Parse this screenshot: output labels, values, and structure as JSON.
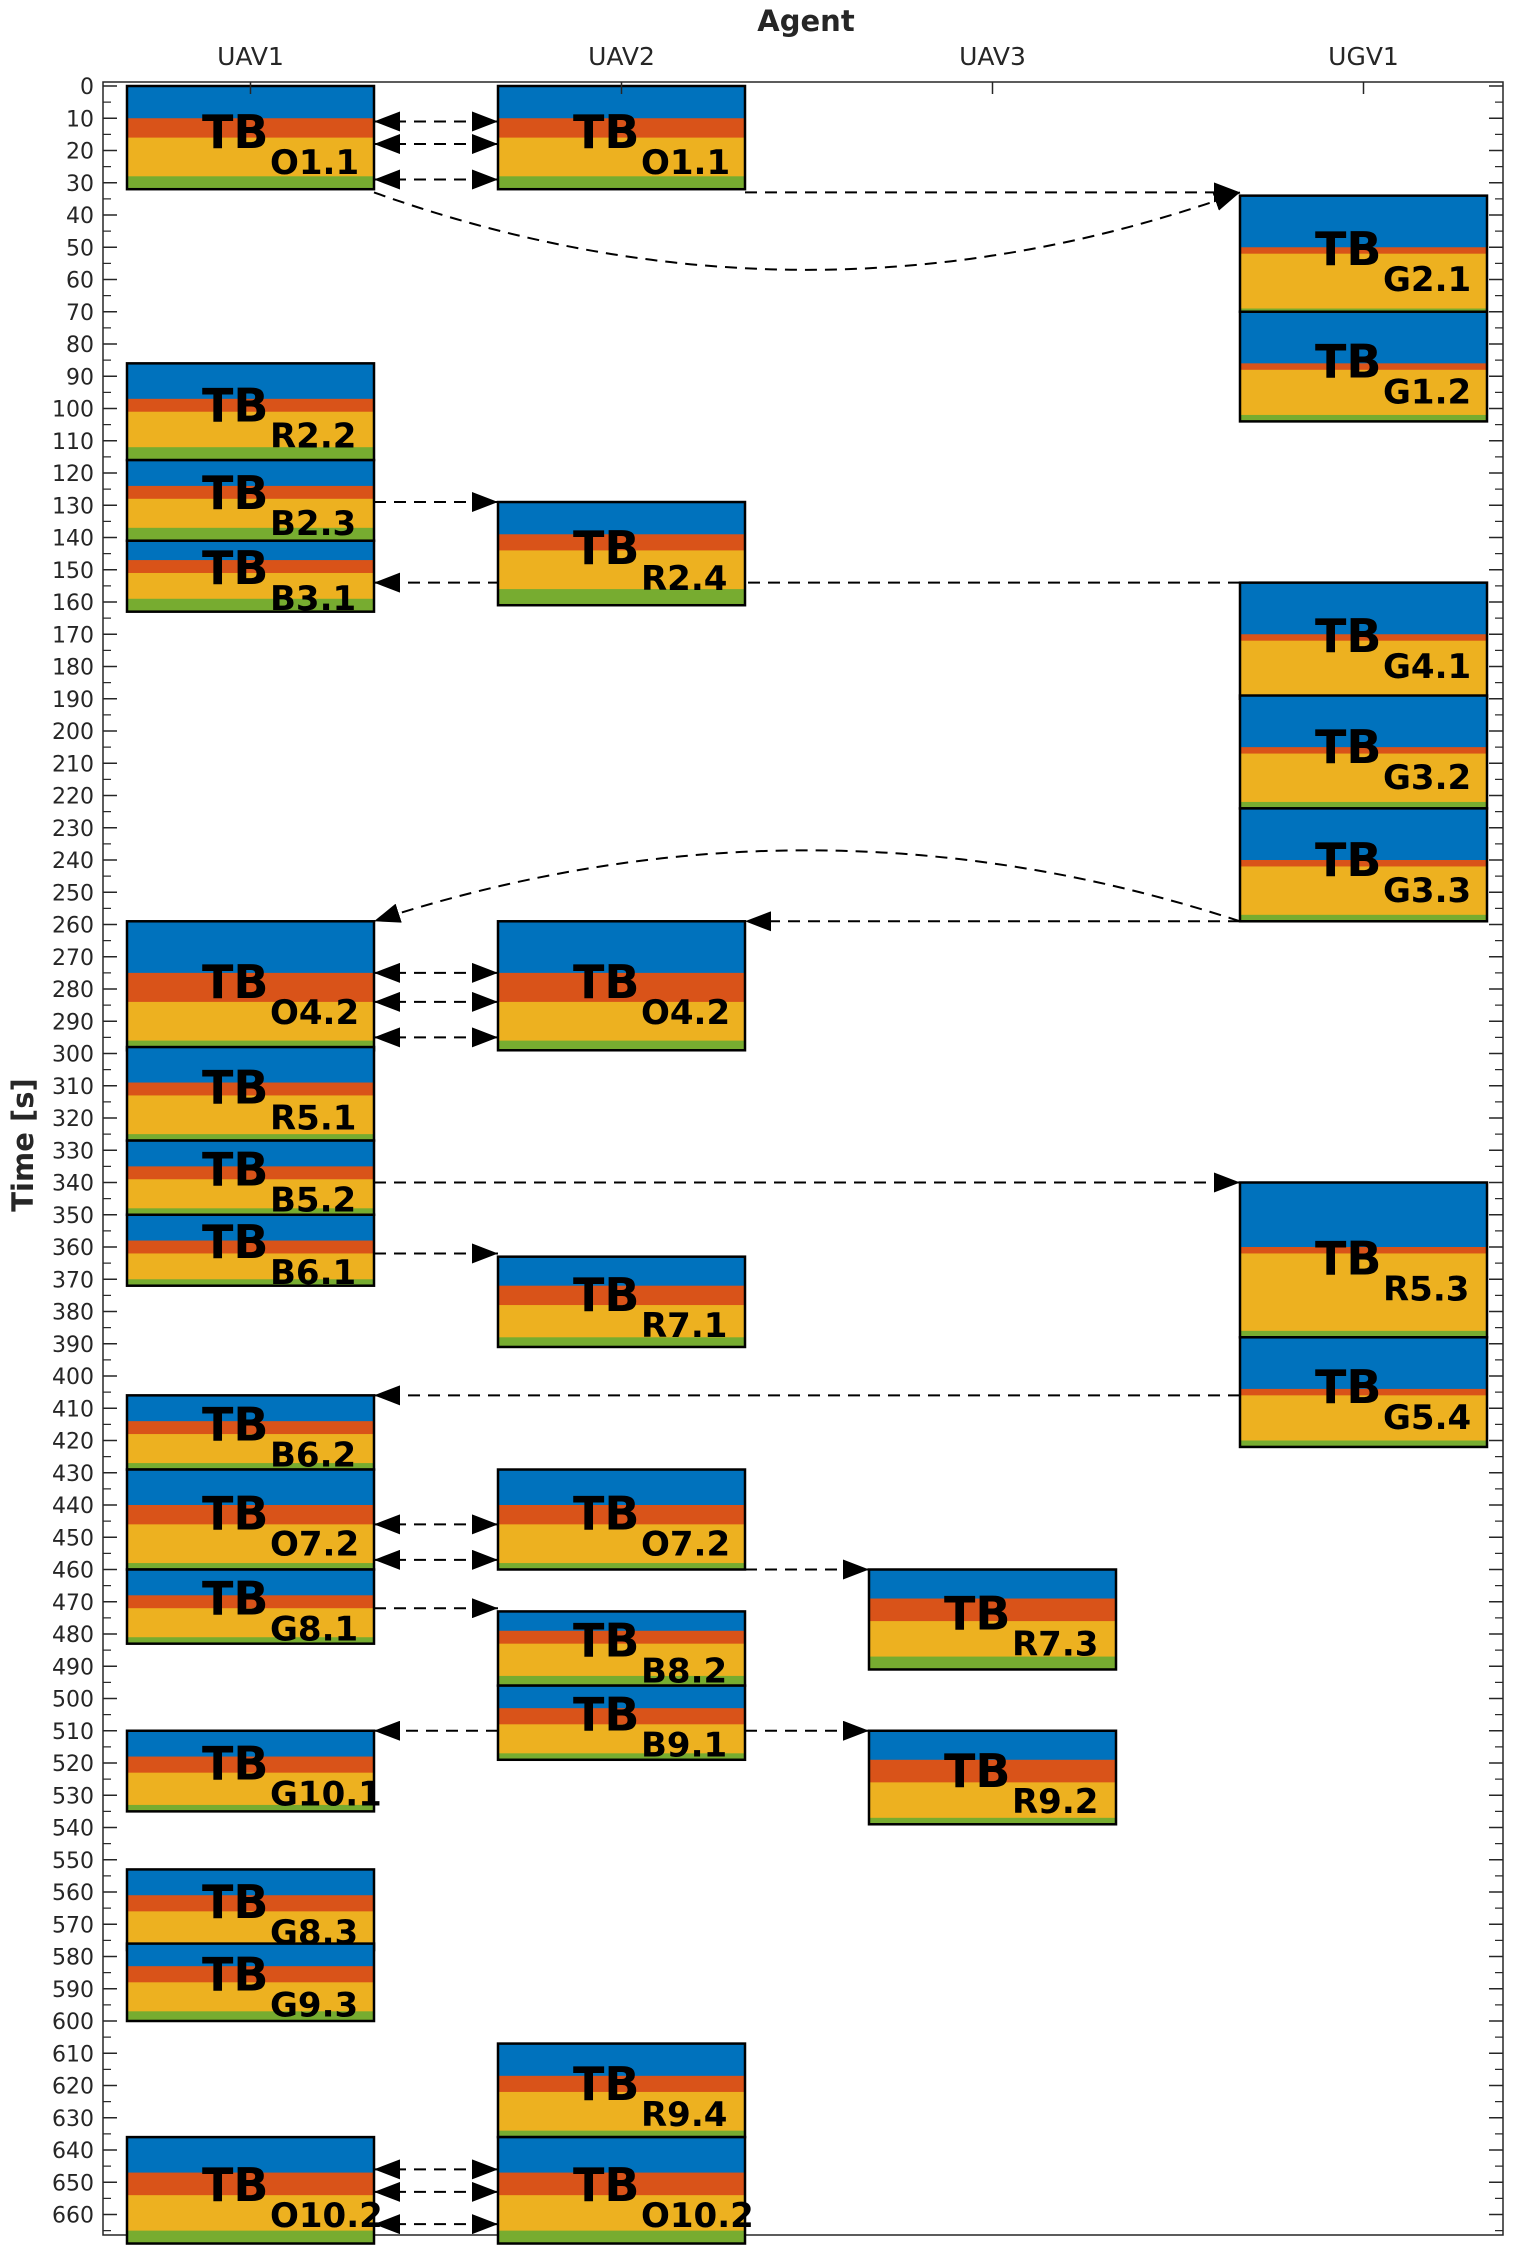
{
  "chart_data": {
    "type": "gantt",
    "title": "Agent",
    "ylabel": "Time [s]",
    "ylim": [
      0,
      670
    ],
    "yticks": [
      0,
      10,
      20,
      30,
      40,
      50,
      60,
      70,
      80,
      90,
      100,
      110,
      120,
      130,
      140,
      150,
      160,
      170,
      180,
      190,
      200,
      210,
      220,
      230,
      240,
      250,
      260,
      270,
      280,
      290,
      300,
      310,
      320,
      330,
      340,
      350,
      360,
      370,
      380,
      390,
      400,
      410,
      420,
      430,
      440,
      450,
      460,
      470,
      480,
      490,
      500,
      510,
      520,
      530,
      540,
      550,
      560,
      570,
      580,
      590,
      600,
      610,
      620,
      630,
      640,
      650,
      660
    ],
    "agents": [
      "UAV1",
      "UAV2",
      "UAV3",
      "UGV1"
    ],
    "segment_colors": {
      "blue": "#0072BD",
      "orange": "#D95319",
      "yellow": "#EDB120",
      "green": "#77AC30"
    },
    "tasks": [
      {
        "agent": 0,
        "label": "TB",
        "sub": "O1.1",
        "start": 0,
        "segments": [
          10,
          6,
          12,
          4
        ]
      },
      {
        "agent": 1,
        "label": "TB",
        "sub": "O1.1",
        "start": 0,
        "segments": [
          10,
          6,
          12,
          4
        ]
      },
      {
        "agent": 3,
        "label": "TB",
        "sub": "G2.1",
        "start": 34,
        "segments": [
          16,
          2,
          17,
          1
        ]
      },
      {
        "agent": 3,
        "label": "TB",
        "sub": "G1.2",
        "start": 70,
        "segments": [
          16,
          2,
          14,
          2
        ]
      },
      {
        "agent": 0,
        "label": "TB",
        "sub": "R2.2",
        "start": 86,
        "segments": [
          11,
          4,
          11,
          4
        ]
      },
      {
        "agent": 0,
        "label": "TB",
        "sub": "B2.3",
        "start": 116,
        "segments": [
          8,
          4,
          9,
          4
        ]
      },
      {
        "agent": 1,
        "label": "TB",
        "sub": "R2.4",
        "start": 129,
        "segments": [
          10,
          5,
          12,
          5
        ]
      },
      {
        "agent": 0,
        "label": "TB",
        "sub": "B3.1",
        "start": 141,
        "segments": [
          6,
          4,
          8,
          4
        ]
      },
      {
        "agent": 3,
        "label": "TB",
        "sub": "G4.1",
        "start": 154,
        "segments": [
          16,
          2,
          17,
          1
        ]
      },
      {
        "agent": 3,
        "label": "TB",
        "sub": "G3.2",
        "start": 189,
        "segments": [
          16,
          2,
          15,
          2
        ]
      },
      {
        "agent": 3,
        "label": "TB",
        "sub": "G3.3",
        "start": 224,
        "segments": [
          16,
          2,
          15,
          2
        ]
      },
      {
        "agent": 0,
        "label": "TB",
        "sub": "O4.2",
        "start": 259,
        "segments": [
          16,
          9,
          12,
          3
        ]
      },
      {
        "agent": 1,
        "label": "TB",
        "sub": "O4.2",
        "start": 259,
        "segments": [
          16,
          9,
          12,
          3
        ]
      },
      {
        "agent": 0,
        "label": "TB",
        "sub": "R5.1",
        "start": 298,
        "segments": [
          11,
          4,
          12,
          2
        ]
      },
      {
        "agent": 0,
        "label": "TB",
        "sub": "B5.2",
        "start": 327,
        "segments": [
          8,
          4,
          9,
          2
        ]
      },
      {
        "agent": 3,
        "label": "TB",
        "sub": "R5.3",
        "start": 340,
        "segments": [
          20,
          2,
          24,
          2
        ]
      },
      {
        "agent": 0,
        "label": "TB",
        "sub": "B6.1",
        "start": 350,
        "segments": [
          8,
          4,
          8,
          2
        ]
      },
      {
        "agent": 1,
        "label": "TB",
        "sub": "R7.1",
        "start": 363,
        "segments": [
          9,
          6,
          10,
          3
        ]
      },
      {
        "agent": 3,
        "label": "TB",
        "sub": "G5.4",
        "start": 388,
        "segments": [
          16,
          2,
          14,
          2
        ]
      },
      {
        "agent": 0,
        "label": "TB",
        "sub": "B6.2",
        "start": 406,
        "segments": [
          8,
          4,
          9,
          2
        ]
      },
      {
        "agent": 0,
        "label": "TB",
        "sub": "O7.2",
        "start": 429,
        "segments": [
          11,
          6,
          12,
          2
        ]
      },
      {
        "agent": 1,
        "label": "TB",
        "sub": "O7.2",
        "start": 429,
        "segments": [
          11,
          6,
          12,
          2
        ]
      },
      {
        "agent": 0,
        "label": "TB",
        "sub": "G8.1",
        "start": 460,
        "segments": [
          8,
          4,
          9,
          2
        ]
      },
      {
        "agent": 2,
        "label": "TB",
        "sub": "R7.3",
        "start": 460,
        "segments": [
          9,
          7,
          11,
          4
        ]
      },
      {
        "agent": 1,
        "label": "TB",
        "sub": "B8.2",
        "start": 473,
        "segments": [
          6,
          4,
          10,
          3
        ]
      },
      {
        "agent": 1,
        "label": "TB",
        "sub": "B9.1",
        "start": 496,
        "segments": [
          7,
          5,
          9,
          2
        ]
      },
      {
        "agent": 0,
        "label": "TB",
        "sub": "G10.1",
        "start": 510,
        "segments": [
          8,
          5,
          10,
          2
        ]
      },
      {
        "agent": 2,
        "label": "TB",
        "sub": "R9.2",
        "start": 510,
        "segments": [
          9,
          7,
          11,
          2
        ]
      },
      {
        "agent": 0,
        "label": "TB",
        "sub": "G8.3",
        "start": 553,
        "segments": [
          8,
          5,
          10,
          2
        ]
      },
      {
        "agent": 0,
        "label": "TB",
        "sub": "G9.3",
        "start": 576,
        "segments": [
          7,
          5,
          9,
          3
        ]
      },
      {
        "agent": 1,
        "label": "TB",
        "sub": "R9.4",
        "start": 607,
        "segments": [
          10,
          5,
          12,
          2
        ]
      },
      {
        "agent": 0,
        "label": "TB",
        "sub": "O10.2",
        "start": 636,
        "segments": [
          11,
          7,
          11,
          4
        ]
      },
      {
        "agent": 1,
        "label": "TB",
        "sub": "O10.2",
        "start": 636,
        "segments": [
          11,
          7,
          11,
          4
        ]
      }
    ],
    "links": [
      {
        "type": "bidir",
        "from": 0,
        "to": 1,
        "t": 11
      },
      {
        "type": "bidir",
        "from": 0,
        "to": 1,
        "t": 18
      },
      {
        "type": "bidir",
        "from": 0,
        "to": 1,
        "t": 29
      },
      {
        "type": "straight",
        "from": 1,
        "to": 3,
        "t1": 33,
        "t2": 33
      },
      {
        "type": "curve",
        "from": 0,
        "to": 3,
        "t1": 33,
        "t2": 33,
        "peak": 57
      },
      {
        "type": "straight",
        "from": 0,
        "to": 1,
        "t1": 129,
        "t2": 129
      },
      {
        "type": "straight",
        "from": 3,
        "to": 0,
        "t1": 154,
        "t2": 154
      },
      {
        "type": "curve",
        "from": 3,
        "to": 0,
        "t1": 259,
        "t2": 259,
        "peak": 237
      },
      {
        "type": "straight",
        "from": 3,
        "to": 1,
        "t1": 259,
        "t2": 259
      },
      {
        "type": "bidir",
        "from": 0,
        "to": 1,
        "t": 275
      },
      {
        "type": "bidir",
        "from": 0,
        "to": 1,
        "t": 284
      },
      {
        "type": "bidir",
        "from": 0,
        "to": 1,
        "t": 295
      },
      {
        "type": "straight",
        "from": 0,
        "to": 3,
        "t1": 340,
        "t2": 340
      },
      {
        "type": "straight",
        "from": 0,
        "to": 1,
        "t1": 362,
        "t2": 362
      },
      {
        "type": "straight",
        "from": 3,
        "to": 0,
        "t1": 406,
        "t2": 406
      },
      {
        "type": "bidir",
        "from": 0,
        "to": 1,
        "t": 446
      },
      {
        "type": "bidir",
        "from": 0,
        "to": 1,
        "t": 457
      },
      {
        "type": "straight",
        "from": 1,
        "to": 2,
        "t1": 460,
        "t2": 460
      },
      {
        "type": "straight",
        "from": 0,
        "to": 1,
        "t1": 472,
        "t2": 472
      },
      {
        "type": "straight",
        "from": 1,
        "to": 0,
        "t1": 510,
        "t2": 510
      },
      {
        "type": "straight",
        "from": 1,
        "to": 2,
        "t1": 510,
        "t2": 510
      },
      {
        "type": "bidir",
        "from": 0,
        "to": 1,
        "t": 646
      },
      {
        "type": "bidir",
        "from": 0,
        "to": 1,
        "t": 653
      },
      {
        "type": "bidir",
        "from": 0,
        "to": 1,
        "t": 663
      }
    ]
  }
}
